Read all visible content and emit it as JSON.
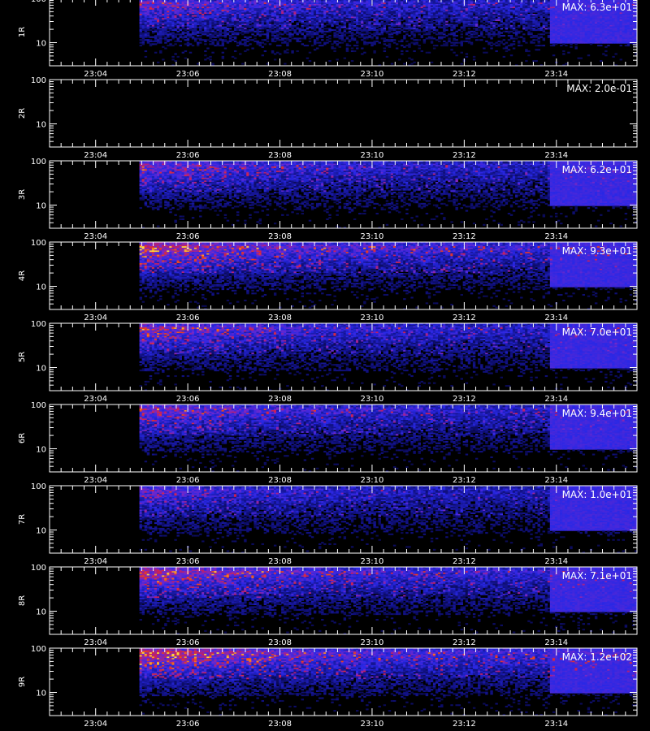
{
  "chart_data": {
    "type": "heatmap",
    "x_ticks": [
      "23:04",
      "23:06",
      "23:08",
      "23:10",
      "23:12",
      "23:14"
    ],
    "x_time_range_minutes": [
      3.0,
      15.75
    ],
    "data_start_minute": 4.95,
    "y_scale": "log",
    "y_range": [
      3,
      100
    ],
    "y_major_tick_labels": [
      "10",
      "100"
    ],
    "colors": {
      "background": "#000000",
      "axes": "#ffffff",
      "low": "#1e1ed2",
      "high": "#ffd232"
    },
    "panels": [
      {
        "ylabel": "1R",
        "max_label": "MAX: 6.3e+01",
        "intensity": 0.75,
        "active": true
      },
      {
        "ylabel": "2R",
        "max_label": "MAX: 2.0e-01",
        "intensity": 0.0,
        "active": false
      },
      {
        "ylabel": "3R",
        "max_label": "MAX: 6.2e+01",
        "intensity": 0.78,
        "active": true
      },
      {
        "ylabel": "4R",
        "max_label": "MAX: 9.3e+01",
        "intensity": 0.95,
        "active": true
      },
      {
        "ylabel": "5R",
        "max_label": "MAX: 7.0e+01",
        "intensity": 0.82,
        "active": true
      },
      {
        "ylabel": "6R",
        "max_label": "MAX: 9.4e+01",
        "intensity": 0.8,
        "active": true
      },
      {
        "ylabel": "7R",
        "max_label": "MAX: 1.0e+01",
        "intensity": 0.7,
        "active": true
      },
      {
        "ylabel": "8R",
        "max_label": "MAX: 7.1e+01",
        "intensity": 0.9,
        "active": true
      },
      {
        "ylabel": "9R",
        "max_label": "MAX: 1.2e+02",
        "intensity": 1.0,
        "active": true
      }
    ]
  }
}
